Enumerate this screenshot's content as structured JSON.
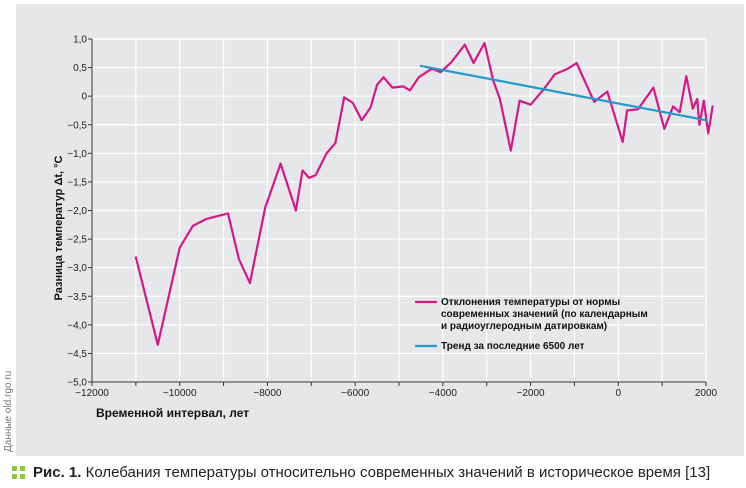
{
  "chart_data": {
    "type": "line",
    "xlabel": "Временной интервал, лет",
    "ylabel": "Разница температур Δt, °C",
    "xlim": [
      -12000,
      2000
    ],
    "ylim": [
      -5.0,
      1.0
    ],
    "x_ticks": [
      -12000,
      -10000,
      -8000,
      -6000,
      -4000,
      -2000,
      0,
      2000
    ],
    "y_ticks": [
      1.0,
      0.5,
      0,
      -0.5,
      -1.0,
      -1.5,
      -2.0,
      -2.5,
      -3.0,
      -3.5,
      -4.0,
      -4.5,
      -5.0
    ],
    "x_tick_labels": [
      "−12000",
      "−10000",
      "−8000",
      "−6000",
      "−4000",
      "−2000",
      "0",
      "2000"
    ],
    "y_tick_labels": [
      "1,0",
      "0,5",
      "0",
      "−0,5",
      "−1,0",
      "−1,5",
      "−2,0",
      "−2,5",
      "−3,0",
      "−3,5",
      "−4,0",
      "−4,5",
      "−5,0"
    ],
    "grid": true,
    "legend_position": "bottom-right",
    "series": [
      {
        "name": "Отклонения температуры от нормы современных значений (по календарным и радиоуглеродным датировкам)",
        "color": "#d6178a",
        "points": [
          [
            -11000,
            -2.82
          ],
          [
            -10500,
            -4.35
          ],
          [
            -10000,
            -2.65
          ],
          [
            -9700,
            -2.27
          ],
          [
            -9400,
            -2.15
          ],
          [
            -8900,
            -2.05
          ],
          [
            -8650,
            -2.85
          ],
          [
            -8400,
            -3.27
          ],
          [
            -8050,
            -1.95
          ],
          [
            -7700,
            -1.18
          ],
          [
            -7350,
            -2.0
          ],
          [
            -7200,
            -1.3
          ],
          [
            -7050,
            -1.43
          ],
          [
            -6900,
            -1.38
          ],
          [
            -6650,
            -1.0
          ],
          [
            -6450,
            -0.82
          ],
          [
            -6250,
            -0.02
          ],
          [
            -6050,
            -0.12
          ],
          [
            -5850,
            -0.42
          ],
          [
            -5650,
            -0.2
          ],
          [
            -5500,
            0.2
          ],
          [
            -5350,
            0.33
          ],
          [
            -5150,
            0.15
          ],
          [
            -4900,
            0.17
          ],
          [
            -4750,
            0.1
          ],
          [
            -4550,
            0.33
          ],
          [
            -4250,
            0.48
          ],
          [
            -4050,
            0.42
          ],
          [
            -3800,
            0.6
          ],
          [
            -3500,
            0.9
          ],
          [
            -3300,
            0.58
          ],
          [
            -3050,
            0.93
          ],
          [
            -2850,
            0.27
          ],
          [
            -2700,
            -0.05
          ],
          [
            -2450,
            -0.95
          ],
          [
            -2250,
            -0.08
          ],
          [
            -2000,
            -0.15
          ],
          [
            -1700,
            0.12
          ],
          [
            -1450,
            0.38
          ],
          [
            -1150,
            0.48
          ],
          [
            -950,
            0.58
          ],
          [
            -550,
            -0.1
          ],
          [
            -250,
            0.08
          ],
          [
            -100,
            -0.3
          ],
          [
            100,
            -0.8
          ],
          [
            200,
            -0.25
          ],
          [
            450,
            -0.23
          ],
          [
            800,
            0.15
          ],
          [
            1050,
            -0.57
          ],
          [
            1250,
            -0.18
          ],
          [
            1400,
            -0.28
          ],
          [
            1550,
            0.35
          ],
          [
            1700,
            -0.22
          ],
          [
            1800,
            -0.05
          ],
          [
            1850,
            -0.5
          ],
          [
            1950,
            -0.08
          ],
          [
            2050,
            -0.65
          ],
          [
            2150,
            -0.18
          ]
        ]
      },
      {
        "name": "Тренд за последние 6500 лет",
        "color": "#1f9bcc",
        "points": [
          [
            -4500,
            0.53
          ],
          [
            2000,
            -0.42
          ]
        ]
      }
    ]
  },
  "caption": {
    "prefix": "Рис. 1.",
    "text": " Колебания температуры относительно современных значений в историческое время [13]"
  },
  "side_note": "Данные old.rgo.ru"
}
